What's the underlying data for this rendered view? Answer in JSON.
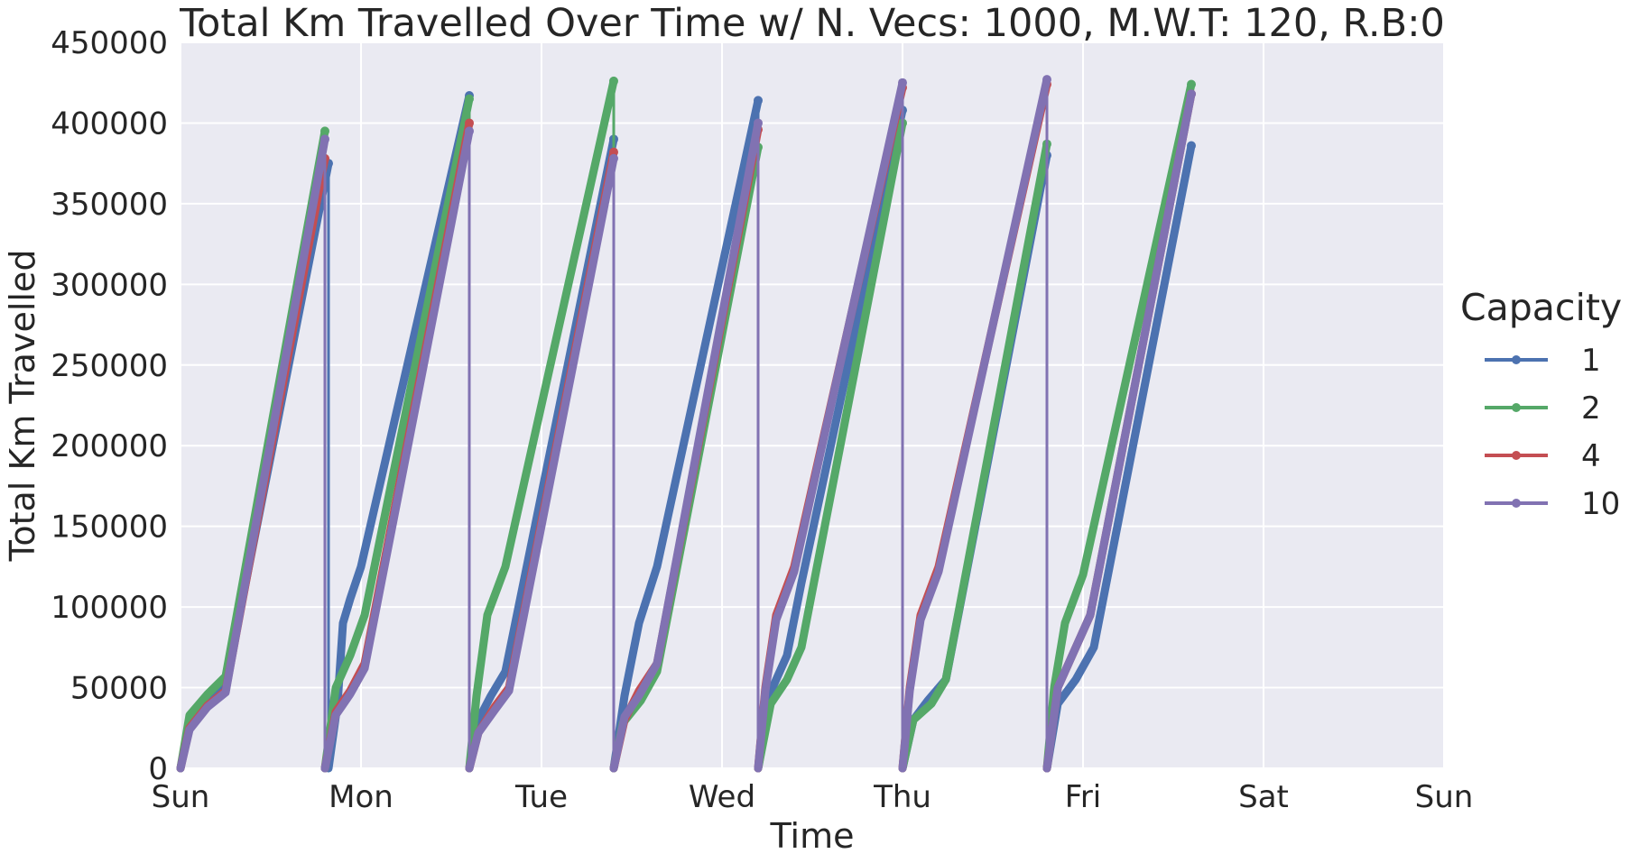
{
  "chart_data": {
    "type": "line",
    "title": "Total Km Travelled Over Time w/ N. Vecs: 1000, M.W.T: 120, R.B:0",
    "xlabel": "Time",
    "ylabel": "Total Km Travelled",
    "x_tick_labels": [
      "Sun",
      "Mon",
      "Tue",
      "Wed",
      "Thu",
      "Fri",
      "Sat",
      "Sun"
    ],
    "xlim_days": [
      0,
      7
    ],
    "ylim": [
      0,
      450000
    ],
    "y_ticks": [
      0,
      50000,
      100000,
      150000,
      200000,
      250000,
      300000,
      350000,
      400000,
      450000
    ],
    "grid": true,
    "legend": {
      "title": "Capacity",
      "placement": "right",
      "entries": [
        "1",
        "2",
        "4",
        "10"
      ]
    },
    "series": [
      {
        "name": "1",
        "color": "#4c72b0",
        "segments": [
          [
            [
              0.0,
              0
            ],
            [
              0.05,
              28000
            ],
            [
              0.15,
              41000
            ],
            [
              0.25,
              52000
            ],
            [
              0.82,
              375000
            ]
          ],
          [
            [
              0.82,
              0
            ],
            [
              0.87,
              40000
            ],
            [
              0.9,
              90000
            ],
            [
              0.94,
              105000
            ],
            [
              1.0,
              125000
            ],
            [
              1.6,
              417000
            ]
          ],
          [
            [
              1.6,
              0
            ],
            [
              1.65,
              30000
            ],
            [
              1.72,
              45000
            ],
            [
              1.8,
              60000
            ],
            [
              2.4,
              390000
            ]
          ],
          [
            [
              2.4,
              0
            ],
            [
              2.46,
              45000
            ],
            [
              2.54,
              90000
            ],
            [
              2.64,
              125000
            ],
            [
              3.2,
              414000
            ]
          ],
          [
            [
              3.2,
              0
            ],
            [
              3.28,
              50000
            ],
            [
              3.36,
              70000
            ],
            [
              3.44,
              115000
            ],
            [
              4.0,
              408000
            ]
          ],
          [
            [
              4.0,
              0
            ],
            [
              4.06,
              30000
            ],
            [
              4.14,
              42000
            ],
            [
              4.24,
              55000
            ],
            [
              4.8,
              380000
            ]
          ],
          [
            [
              4.8,
              0
            ],
            [
              4.86,
              40000
            ],
            [
              4.96,
              55000
            ],
            [
              5.06,
              75000
            ],
            [
              5.6,
              386000
            ]
          ]
        ]
      },
      {
        "name": "2",
        "color": "#55a868",
        "segments": [
          [
            [
              0.0,
              0
            ],
            [
              0.05,
              33000
            ],
            [
              0.15,
              46000
            ],
            [
              0.25,
              57000
            ],
            [
              0.8,
              395000
            ]
          ],
          [
            [
              0.8,
              0
            ],
            [
              0.86,
              50000
            ],
            [
              0.94,
              70000
            ],
            [
              1.02,
              95000
            ],
            [
              1.6,
              415000
            ]
          ],
          [
            [
              1.6,
              0
            ],
            [
              1.64,
              45000
            ],
            [
              1.7,
              95000
            ],
            [
              1.8,
              125000
            ],
            [
              2.4,
              426000
            ]
          ],
          [
            [
              2.4,
              0
            ],
            [
              2.45,
              28000
            ],
            [
              2.55,
              42000
            ],
            [
              2.64,
              60000
            ],
            [
              3.2,
              385000
            ]
          ],
          [
            [
              3.2,
              0
            ],
            [
              3.27,
              40000
            ],
            [
              3.36,
              55000
            ],
            [
              3.44,
              75000
            ],
            [
              4.0,
              400000
            ]
          ],
          [
            [
              4.0,
              0
            ],
            [
              4.06,
              30000
            ],
            [
              4.16,
              40000
            ],
            [
              4.24,
              55000
            ],
            [
              4.8,
              387000
            ]
          ],
          [
            [
              4.8,
              0
            ],
            [
              4.84,
              50000
            ],
            [
              4.9,
              90000
            ],
            [
              5.0,
              120000
            ],
            [
              5.6,
              424000
            ]
          ]
        ]
      },
      {
        "name": "4",
        "color": "#c44e52",
        "segments": [
          [
            [
              0.0,
              0
            ],
            [
              0.05,
              25000
            ],
            [
              0.15,
              39000
            ],
            [
              0.25,
              48000
            ],
            [
              0.8,
              378000
            ]
          ],
          [
            [
              0.8,
              0
            ],
            [
              0.86,
              35000
            ],
            [
              0.94,
              48000
            ],
            [
              1.02,
              65000
            ],
            [
              1.6,
              400000
            ]
          ],
          [
            [
              1.6,
              0
            ],
            [
              1.65,
              22000
            ],
            [
              1.74,
              38000
            ],
            [
              1.82,
              50000
            ],
            [
              2.4,
              382000
            ]
          ],
          [
            [
              2.4,
              0
            ],
            [
              2.46,
              30000
            ],
            [
              2.54,
              48000
            ],
            [
              2.64,
              65000
            ],
            [
              3.2,
              396000
            ]
          ],
          [
            [
              3.2,
              0
            ],
            [
              3.24,
              50000
            ],
            [
              3.3,
              95000
            ],
            [
              3.4,
              125000
            ],
            [
              4.0,
              422000
            ]
          ],
          [
            [
              4.0,
              0
            ],
            [
              4.04,
              50000
            ],
            [
              4.1,
              95000
            ],
            [
              4.2,
              125000
            ],
            [
              4.8,
              424000
            ]
          ],
          [
            [
              4.8,
              0
            ],
            [
              4.86,
              50000
            ],
            [
              4.94,
              70000
            ],
            [
              5.04,
              95000
            ],
            [
              5.6,
              418000
            ]
          ]
        ]
      },
      {
        "name": "10",
        "color": "#8172b2",
        "segments": [
          [
            [
              0.0,
              0
            ],
            [
              0.05,
              24000
            ],
            [
              0.15,
              38000
            ],
            [
              0.25,
              47000
            ],
            [
              0.8,
              390000
            ]
          ],
          [
            [
              0.8,
              0
            ],
            [
              0.86,
              33000
            ],
            [
              0.94,
              46000
            ],
            [
              1.02,
              62000
            ],
            [
              1.6,
              395000
            ]
          ],
          [
            [
              1.6,
              0
            ],
            [
              1.65,
              22000
            ],
            [
              1.74,
              36000
            ],
            [
              1.82,
              48000
            ],
            [
              2.4,
              378000
            ]
          ],
          [
            [
              2.4,
              0
            ],
            [
              2.46,
              32000
            ],
            [
              2.54,
              45000
            ],
            [
              2.64,
              65000
            ],
            [
              3.2,
              400000
            ]
          ],
          [
            [
              3.2,
              0
            ],
            [
              3.24,
              48000
            ],
            [
              3.3,
              92000
            ],
            [
              3.4,
              122000
            ],
            [
              4.0,
              425000
            ]
          ],
          [
            [
              4.0,
              0
            ],
            [
              4.04,
              48000
            ],
            [
              4.1,
              92000
            ],
            [
              4.2,
              122000
            ],
            [
              4.8,
              427000
            ]
          ],
          [
            [
              4.8,
              0
            ],
            [
              4.86,
              50000
            ],
            [
              4.94,
              70000
            ],
            [
              5.04,
              95000
            ],
            [
              5.6,
              418000
            ]
          ]
        ]
      }
    ]
  }
}
